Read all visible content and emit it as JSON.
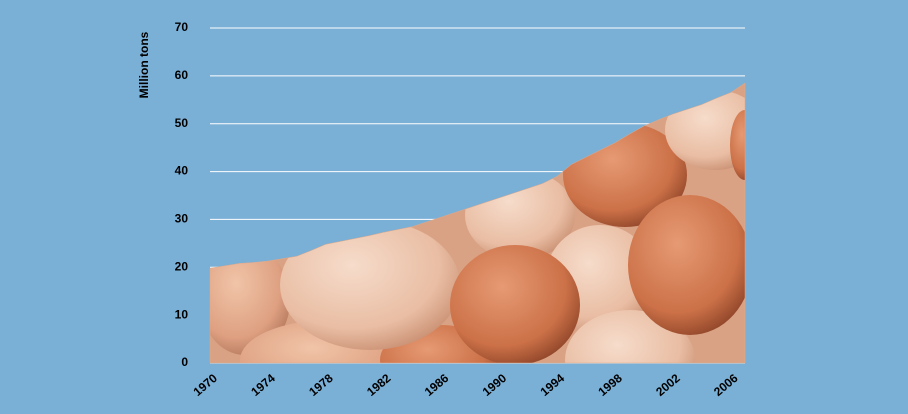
{
  "chart_data": {
    "type": "area",
    "y_label": "Million tons",
    "x": [
      1970,
      1971,
      1972,
      1973,
      1974,
      1975,
      1976,
      1977,
      1978,
      1979,
      1980,
      1981,
      1982,
      1983,
      1984,
      1985,
      1986,
      1987,
      1988,
      1989,
      1990,
      1991,
      1992,
      1993,
      1994,
      1995,
      1996,
      1997,
      1998,
      1999,
      2000,
      2001,
      2002,
      2003,
      2004,
      2005,
      2006,
      2007
    ],
    "values": [
      19.8,
      20.3,
      20.8,
      21.0,
      21.3,
      21.8,
      22.3,
      23.5,
      24.8,
      25.4,
      26.0,
      26.6,
      27.3,
      27.9,
      28.5,
      29.5,
      30.5,
      31.5,
      32.5,
      33.5,
      34.5,
      35.5,
      36.5,
      37.5,
      39.0,
      41.5,
      43.0,
      44.5,
      46.0,
      47.8,
      49.5,
      50.8,
      52.0,
      53.0,
      54.0,
      55.3,
      56.5,
      58.5
    ],
    "color": "#dfa98a",
    "xlim": [
      1970,
      2007
    ],
    "xticks": [
      1970,
      1974,
      1978,
      1982,
      1986,
      1990,
      1994,
      1998,
      2002,
      2006
    ],
    "ylim": [
      0,
      70
    ],
    "yticks": [
      0,
      10,
      20,
      30,
      40,
      50,
      60,
      70
    ],
    "grid": true
  }
}
